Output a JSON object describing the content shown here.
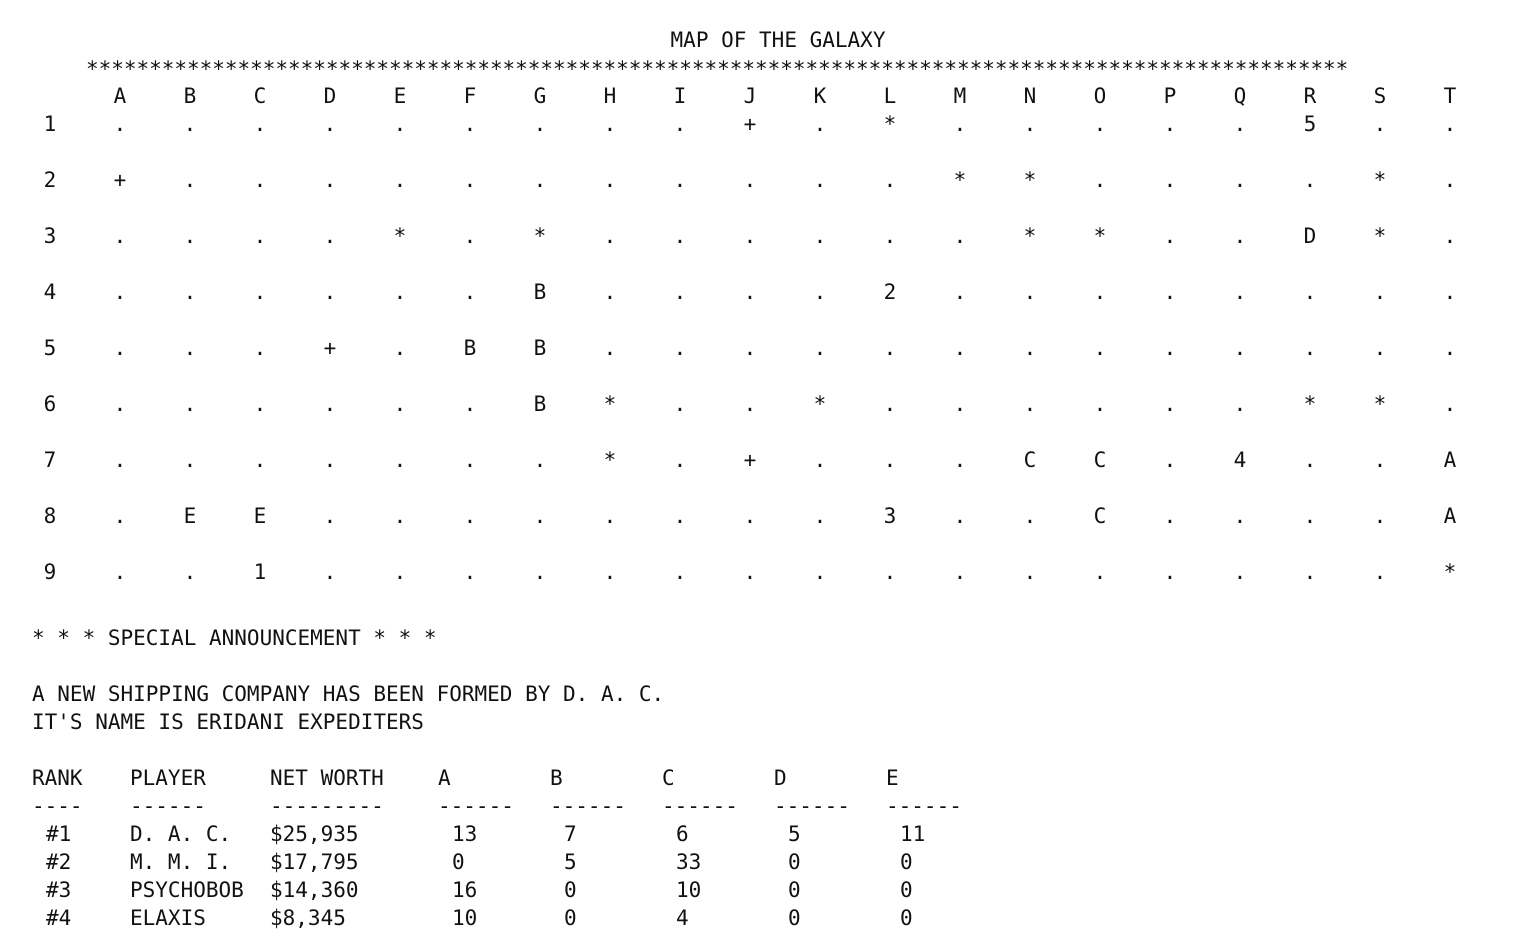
{
  "title": "MAP OF THE GALAXY",
  "border": "****************************************************************************************************",
  "columns": [
    "A",
    "B",
    "C",
    "D",
    "E",
    "F",
    "G",
    "H",
    "I",
    "J",
    "K",
    "L",
    "M",
    "N",
    "O",
    "P",
    "Q",
    "R",
    "S",
    "T"
  ],
  "rows": [
    {
      "label": "1",
      "cells": [
        ".",
        ".",
        ".",
        ".",
        ".",
        ".",
        ".",
        ".",
        ".",
        "+",
        ".",
        "*",
        ".",
        ".",
        ".",
        ".",
        ".",
        "5",
        ".",
        "."
      ]
    },
    {
      "label": "2",
      "cells": [
        "+",
        ".",
        ".",
        ".",
        ".",
        ".",
        ".",
        ".",
        ".",
        ".",
        ".",
        ".",
        "*",
        "*",
        ".",
        ".",
        ".",
        ".",
        "*",
        "."
      ]
    },
    {
      "label": "3",
      "cells": [
        ".",
        ".",
        ".",
        ".",
        "*",
        ".",
        "*",
        ".",
        ".",
        ".",
        ".",
        ".",
        ".",
        "*",
        "*",
        ".",
        ".",
        "D",
        "*",
        "."
      ]
    },
    {
      "label": "4",
      "cells": [
        ".",
        ".",
        ".",
        ".",
        ".",
        ".",
        "B",
        ".",
        ".",
        ".",
        ".",
        "2",
        ".",
        ".",
        ".",
        ".",
        ".",
        ".",
        ".",
        "."
      ]
    },
    {
      "label": "5",
      "cells": [
        ".",
        ".",
        ".",
        "+",
        ".",
        "B",
        "B",
        ".",
        ".",
        ".",
        ".",
        ".",
        ".",
        ".",
        ".",
        ".",
        ".",
        ".",
        ".",
        "."
      ]
    },
    {
      "label": "6",
      "cells": [
        ".",
        ".",
        ".",
        ".",
        ".",
        ".",
        "B",
        "*",
        ".",
        ".",
        "*",
        ".",
        ".",
        ".",
        ".",
        ".",
        ".",
        "*",
        "*",
        "."
      ]
    },
    {
      "label": "7",
      "cells": [
        ".",
        ".",
        ".",
        ".",
        ".",
        ".",
        ".",
        "*",
        ".",
        "+",
        ".",
        ".",
        ".",
        "C",
        "C",
        ".",
        "4",
        ".",
        ".",
        "A"
      ]
    },
    {
      "label": "8",
      "cells": [
        ".",
        "E",
        "E",
        ".",
        ".",
        ".",
        ".",
        ".",
        ".",
        ".",
        ".",
        "3",
        ".",
        ".",
        "C",
        ".",
        ".",
        ".",
        ".",
        "A"
      ]
    },
    {
      "label": "9",
      "cells": [
        ".",
        ".",
        "1",
        ".",
        ".",
        ".",
        ".",
        ".",
        ".",
        ".",
        ".",
        ".",
        ".",
        ".",
        ".",
        ".",
        ".",
        ".",
        ".",
        "*"
      ]
    }
  ],
  "announcement": {
    "title": "* * * SPECIAL ANNOUNCEMENT * * *",
    "line1": "A NEW SHIPPING COMPANY HAS BEEN FORMED BY D. A. C.",
    "line2": "IT'S NAME IS ERIDANI EXPEDITERS"
  },
  "table": {
    "headers": [
      "RANK",
      "PLAYER",
      "NET WORTH",
      "A",
      "B",
      "C",
      "D",
      "E"
    ],
    "dashes": [
      "----",
      "------",
      "---------",
      "------",
      "------",
      "------",
      "------",
      "------"
    ],
    "rows": [
      [
        "#1",
        "D. A. C.",
        "$25,935",
        "13",
        "7",
        "6",
        "5",
        "11"
      ],
      [
        "#2",
        "M. M. I.",
        "$17,795",
        "0",
        "5",
        "33",
        "0",
        "0"
      ],
      [
        "#3",
        "PSYCHOBOB",
        "$14,360",
        "16",
        "0",
        "10",
        "0",
        "0"
      ],
      [
        "#4",
        "ELAXIS",
        "$8,345",
        "10",
        "0",
        "4",
        "0",
        "0"
      ]
    ]
  }
}
